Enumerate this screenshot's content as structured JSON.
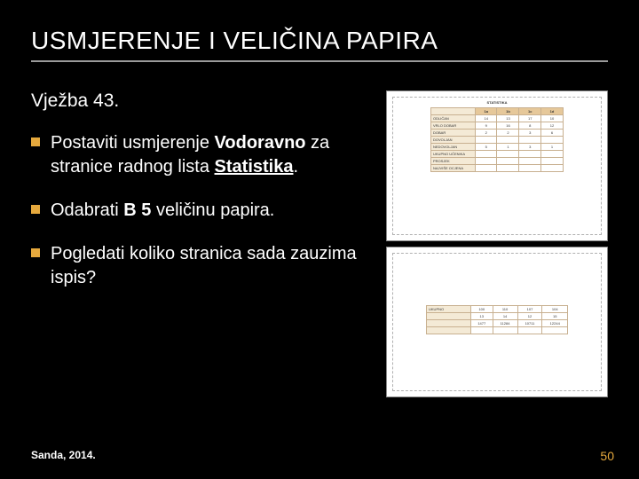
{
  "slide": {
    "title": "USMJERENJE I VELIČINA PAPIRA",
    "subtitle": "Vježba 43.",
    "bullets": [
      {
        "pre": "Postaviti usmjerenje ",
        "strong": "Vodoravno",
        "mid": " za stranice radnog lista ",
        "strong2": "Statistika",
        "post": "."
      },
      {
        "pre": "Odabrati ",
        "strong": "B 5",
        "mid": " veličinu papira.",
        "strong2": "",
        "post": ""
      },
      {
        "pre": "Pogledati koliko stranica sada zauzima ispis?",
        "strong": "",
        "mid": "",
        "strong2": "",
        "post": ""
      }
    ],
    "footer_left": "Sanda, 2014.",
    "page_number": "50",
    "colors": {
      "background": "#000000",
      "text": "#ffffff",
      "accent": "#e6a93d",
      "rule": "#9a9a9a"
    },
    "preview": {
      "caption": "STATISTIKA",
      "table1": {
        "headers": [
          "",
          "1a",
          "1b",
          "1c",
          "1d"
        ],
        "rows": [
          [
            "ODLIČAN",
            "14",
            "13",
            "17",
            "10"
          ],
          [
            "VRLO DOBAR",
            "9",
            "16",
            "8",
            "12"
          ],
          [
            "DOBAR",
            "2",
            "2",
            "3",
            "6"
          ],
          [
            "DOVOLJAN",
            "",
            "",
            "",
            ""
          ],
          [
            "NEDOVOLJAN",
            "5",
            "1",
            "3",
            "1"
          ],
          [
            "UKUPNO UČENIKA",
            "",
            "",
            "",
            ""
          ],
          [
            "PROSJEK",
            "",
            "",
            "",
            ""
          ],
          [
            "NAJVIŠE OCJENA",
            "",
            "",
            "",
            ""
          ]
        ]
      },
      "table2": {
        "rows": [
          [
            "UKUPNO",
            "100",
            "110",
            "107",
            "104"
          ],
          [
            "",
            "13",
            "14",
            "12",
            "15"
          ],
          [
            "",
            "1477",
            "11284",
            "10711",
            "12244"
          ],
          [
            "",
            "",
            "",
            "",
            ""
          ]
        ]
      }
    }
  }
}
